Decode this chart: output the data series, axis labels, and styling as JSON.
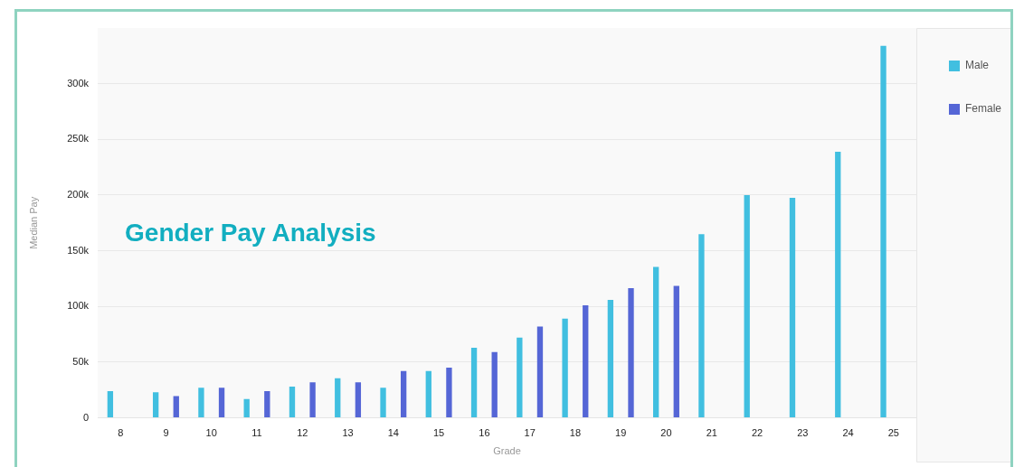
{
  "chart_data": {
    "type": "bar",
    "title": "Gender Pay Analysis",
    "xlabel": "Grade",
    "ylabel": "Median Pay",
    "categories": [
      "8",
      "9",
      "10",
      "11",
      "12",
      "13",
      "14",
      "15",
      "16",
      "17",
      "18",
      "19",
      "20",
      "21",
      "22",
      "23",
      "24",
      "25"
    ],
    "series": [
      {
        "name": "Male",
        "color": "#41bfe0",
        "values": [
          24000,
          23000,
          27000,
          17000,
          28000,
          35500,
          27000,
          42000,
          63000,
          72000,
          89000,
          106000,
          135500,
          165000,
          200000,
          197500,
          239000,
          334000
        ]
      },
      {
        "name": "Female",
        "color": "#5566d6",
        "values": [
          null,
          19500,
          27000,
          24000,
          32000,
          32000,
          42000,
          45000,
          59000,
          82000,
          101000,
          116500,
          118500,
          null,
          null,
          null,
          null,
          null
        ]
      }
    ],
    "ylim": [
      0,
      350000
    ],
    "yticks": [
      {
        "value": 0,
        "label": "0"
      },
      {
        "value": 50000,
        "label": "50k"
      },
      {
        "value": 100000,
        "label": "100k"
      },
      {
        "value": 150000,
        "label": "150k"
      },
      {
        "value": 200000,
        "label": "200k"
      },
      {
        "value": 250000,
        "label": "250k"
      },
      {
        "value": 300000,
        "label": "300k"
      }
    ],
    "grid": "y",
    "legend": "top right"
  }
}
